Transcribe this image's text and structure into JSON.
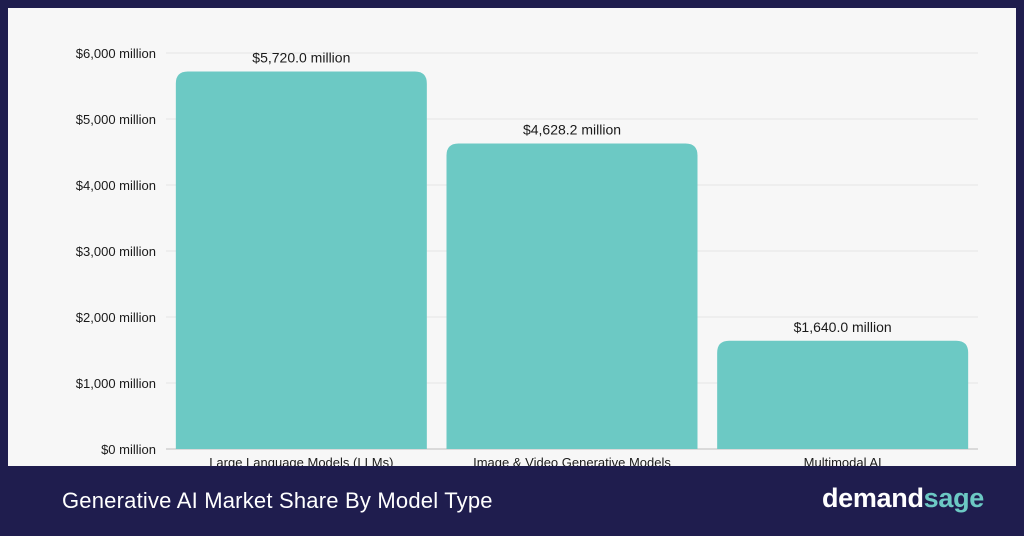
{
  "footer": {
    "title": "Generative AI Market Share By Model Type",
    "logo_part1": "demand",
    "logo_part2": "sage"
  },
  "colors": {
    "bar": "#6cc9c4",
    "footer_bg": "#1f1d4e",
    "text": "#1a1a1a",
    "grid": "#e6e6e6"
  },
  "chart_data": {
    "type": "bar",
    "categories": [
      "Large Language Models (LLMs)",
      "Image & Video Generative Models",
      "Multimodal AI"
    ],
    "values": [
      5720.0,
      4628.2,
      1640.0
    ],
    "data_labels": [
      "$5,720.0 million",
      "$4,628.2 million",
      "$1,640.0 million"
    ],
    "ylim": [
      0,
      6000
    ],
    "yticks": [
      0,
      1000,
      2000,
      3000,
      4000,
      5000,
      6000
    ],
    "ytick_labels": [
      "$0 million",
      "$1,000 million",
      "$2,000 million",
      "$3,000 million",
      "$4,000 million",
      "$5,000 million",
      "$6,000 million"
    ],
    "grid": true,
    "title": "",
    "xlabel": "",
    "ylabel": ""
  }
}
